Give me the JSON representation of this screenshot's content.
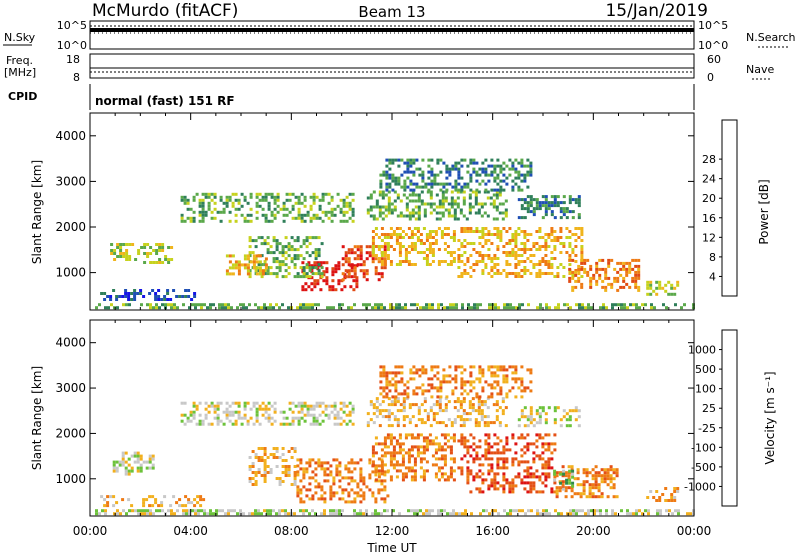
{
  "header": {
    "station": "McMurdo (fitACF)",
    "beam": "Beam 13",
    "date": "15/Jan/2019"
  },
  "top_panels": {
    "nsky_label": "N.Sky",
    "nsky_ticks": [
      "10^5",
      "10^0"
    ],
    "nsearch_label": "N.Search",
    "nsearch_ticks": [
      "10^5",
      "10^0"
    ],
    "freq_label_1": "Freq.",
    "freq_label_2": "[MHz]",
    "freq_ticks": [
      "18",
      "8"
    ],
    "nave_label": "Nave",
    "nave_ticks": [
      "60",
      "0"
    ],
    "cpid_label": "CPID",
    "cpid_text": "normal (fast) 151 RF"
  },
  "chart_data": [
    {
      "type": "heatmap",
      "title": "",
      "ylabel": "Slant Range [km]",
      "xlabel": "",
      "xlim": [
        0,
        24
      ],
      "ylim": [
        180,
        4500
      ],
      "y_ticks": [
        "1000",
        "2000",
        "3000",
        "4000"
      ],
      "colorbar": {
        "label": "Power [dB]",
        "ticks": [
          "4",
          "8",
          "12",
          "16",
          "20",
          "24",
          "28"
        ],
        "colors": [
          "#1414e6",
          "#1f4fb4",
          "#2f7f5a",
          "#5aa84a",
          "#c6d21e",
          "#f0b41c",
          "#ee7a14",
          "#e04a14",
          "#dd1212"
        ]
      },
      "echo_regions": [
        {
          "t0": 0.2,
          "t1": 24.0,
          "r0": 200,
          "r1": 330,
          "level": 3
        },
        {
          "t0": 0.4,
          "t1": 4.2,
          "r0": 380,
          "r1": 640,
          "level": 1
        },
        {
          "t0": 22.1,
          "t1": 23.4,
          "r0": 520,
          "r1": 820,
          "level": 4
        },
        {
          "t0": 8.4,
          "t1": 10.6,
          "r0": 650,
          "r1": 1250,
          "level": 8
        },
        {
          "t0": 10.0,
          "t1": 11.7,
          "r0": 850,
          "r1": 1600,
          "level": 7
        },
        {
          "t0": 11.2,
          "t1": 14.5,
          "r0": 1200,
          "r1": 2000,
          "level": 5
        },
        {
          "t0": 14.6,
          "t1": 19.5,
          "r0": 900,
          "r1": 2000,
          "level": 5
        },
        {
          "t0": 19.0,
          "t1": 21.8,
          "r0": 600,
          "r1": 1300,
          "level": 6
        },
        {
          "t0": 6.3,
          "t1": 9.2,
          "r0": 900,
          "r1": 1800,
          "level": 3
        },
        {
          "t0": 0.8,
          "t1": 3.2,
          "r0": 1200,
          "r1": 1650,
          "level": 4
        },
        {
          "t0": 5.4,
          "t1": 7.0,
          "r0": 1000,
          "r1": 1400,
          "level": 5
        },
        {
          "t0": 3.6,
          "t1": 10.5,
          "r0": 2100,
          "r1": 2750,
          "level": 3
        },
        {
          "t0": 11.0,
          "t1": 16.5,
          "r0": 2200,
          "r1": 2800,
          "level": 3
        },
        {
          "t0": 11.5,
          "t1": 17.5,
          "r0": 2800,
          "r1": 3500,
          "level": 2
        },
        {
          "t0": 17.0,
          "t1": 19.5,
          "r0": 2200,
          "r1": 2700,
          "level": 2
        }
      ]
    },
    {
      "type": "heatmap",
      "title": "",
      "ylabel": "Slant Range [km]",
      "xlabel": "Time UT",
      "xlim": [
        0,
        24
      ],
      "ylim": [
        180,
        4500
      ],
      "x_ticks": [
        "00:00",
        "04:00",
        "08:00",
        "12:00",
        "16:00",
        "20:00",
        "00:00"
      ],
      "y_ticks": [
        "1000",
        "2000",
        "3000",
        "4000"
      ],
      "colorbar": {
        "label": "Velocity [m s⁻¹]",
        "ticks": [
          "1000",
          "500",
          "100",
          "25",
          "-25",
          "-100",
          "-500",
          "-1000"
        ],
        "colors": [
          "#1a3fd6",
          "#2a6aa0",
          "#2f8a4a",
          "#6cc23a",
          "#c8c8c8",
          "#f2b01e",
          "#ee7a14",
          "#e45016",
          "#dd1212"
        ]
      },
      "echo_regions": [
        {
          "t0": 0.2,
          "t1": 24.0,
          "r0": 200,
          "r1": 330,
          "level": 4
        },
        {
          "t0": 0.4,
          "t1": 4.5,
          "r0": 380,
          "r1": 640,
          "level": 5
        },
        {
          "t0": 22.1,
          "t1": 23.4,
          "r0": 520,
          "r1": 820,
          "level": 5
        },
        {
          "t0": 8.2,
          "t1": 11.8,
          "r0": 500,
          "r1": 1450,
          "level": 6
        },
        {
          "t0": 11.2,
          "t1": 14.5,
          "r0": 1000,
          "r1": 2000,
          "level": 6
        },
        {
          "t0": 14.6,
          "t1": 18.5,
          "r0": 700,
          "r1": 2000,
          "level": 7
        },
        {
          "t0": 18.5,
          "t1": 21.0,
          "r0": 600,
          "r1": 1300,
          "level": 6
        },
        {
          "t0": 18.4,
          "t1": 19.2,
          "r0": 800,
          "r1": 1200,
          "level": 3
        },
        {
          "t0": 6.3,
          "t1": 8.2,
          "r0": 900,
          "r1": 1700,
          "level": 5
        },
        {
          "t0": 0.9,
          "t1": 2.5,
          "r0": 1100,
          "r1": 1600,
          "level": 4
        },
        {
          "t0": 3.6,
          "t1": 10.5,
          "r0": 2200,
          "r1": 2700,
          "level": 4
        },
        {
          "t0": 11.0,
          "t1": 16.5,
          "r0": 2200,
          "r1": 2800,
          "level": 5
        },
        {
          "t0": 11.5,
          "t1": 17.5,
          "r0": 2800,
          "r1": 3500,
          "level": 6
        },
        {
          "t0": 17.0,
          "t1": 19.5,
          "r0": 2200,
          "r1": 2600,
          "level": 4
        }
      ]
    }
  ]
}
